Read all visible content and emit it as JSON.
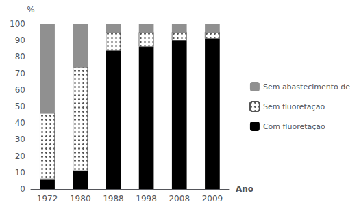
{
  "chart_data": {
    "type": "bar",
    "categories": [
      "1972",
      "1980",
      "1988",
      "1998",
      "2008",
      "2009"
    ],
    "series": [
      {
        "name": "Com fluoretação",
        "color": "#000000",
        "values": [
          6,
          11,
          84,
          86,
          90,
          91
        ]
      },
      {
        "name": "Sem fluoretação",
        "color": "#ffffff",
        "values": [
          40,
          63,
          11,
          9,
          5,
          4
        ]
      },
      {
        "name": "Sem abastecimento de",
        "color": "#909090",
        "values": [
          54,
          26,
          5,
          5,
          5,
          5
        ]
      }
    ],
    "xlabel": "Ano",
    "ylabel": "%",
    "ylim": [
      0,
      100
    ],
    "yticks": [
      0,
      10,
      20,
      30,
      40,
      50,
      60,
      70,
      80,
      90,
      100
    ],
    "stacked": true,
    "grid": false,
    "legend": "right"
  }
}
